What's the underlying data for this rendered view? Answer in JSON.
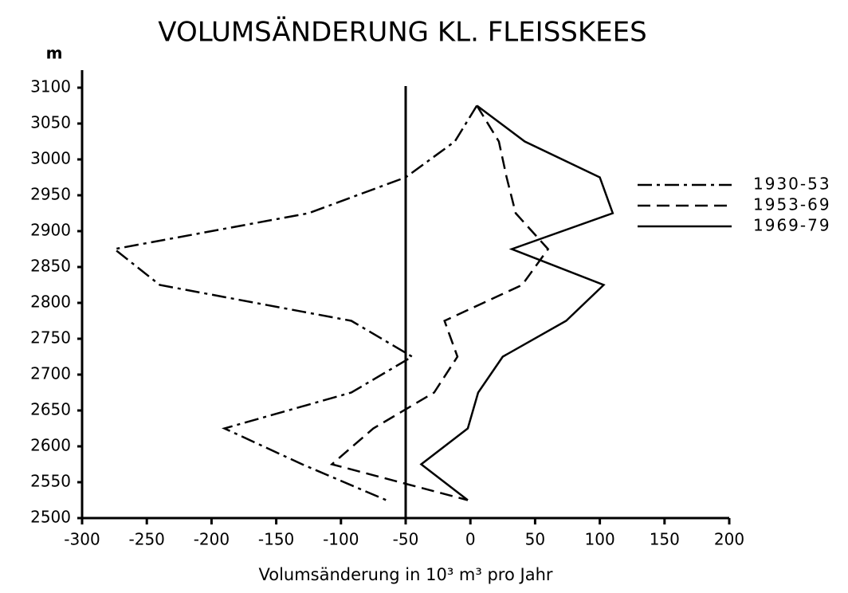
{
  "chart_data": {
    "type": "line",
    "title": "VOLUMSÄNDERUNG KL. FLEISSKEES",
    "xlabel": "Volumsänderung in 10³ m³ pro Jahr",
    "ylabel": "m",
    "y": [
      3075,
      3025,
      2975,
      2925,
      2875,
      2825,
      2775,
      2725,
      2675,
      2625,
      2575,
      2525
    ],
    "series": [
      {
        "name": "1930-53",
        "color": "#000000",
        "dash": "dashdot",
        "values": [
          5,
          -12,
          -50,
          -125,
          -275,
          -240,
          -92,
          -45,
          -92,
          -190,
          -130,
          -65
        ]
      },
      {
        "name": "1953-69",
        "color": "#000000",
        "dash": "dashed",
        "values": [
          5,
          22,
          28,
          35,
          60,
          40,
          -20,
          -10,
          -28,
          -75,
          -107,
          -2
        ]
      },
      {
        "name": "1969-79",
        "color": "#000000",
        "dash": "solid",
        "values": [
          5,
          42,
          100,
          110,
          32,
          103,
          74,
          25,
          6,
          -2,
          -38,
          -2
        ]
      }
    ],
    "vline": -50,
    "xlim": [
      -300,
      200
    ],
    "xticks": [
      -300,
      -250,
      -200,
      -150,
      -100,
      -50,
      0,
      50,
      100,
      150,
      200
    ],
    "ylim": [
      2500,
      3100
    ],
    "yticks": [
      2500,
      2550,
      2600,
      2650,
      2700,
      2750,
      2800,
      2850,
      2900,
      2950,
      3000,
      3050,
      3100
    ],
    "legend": "right"
  }
}
